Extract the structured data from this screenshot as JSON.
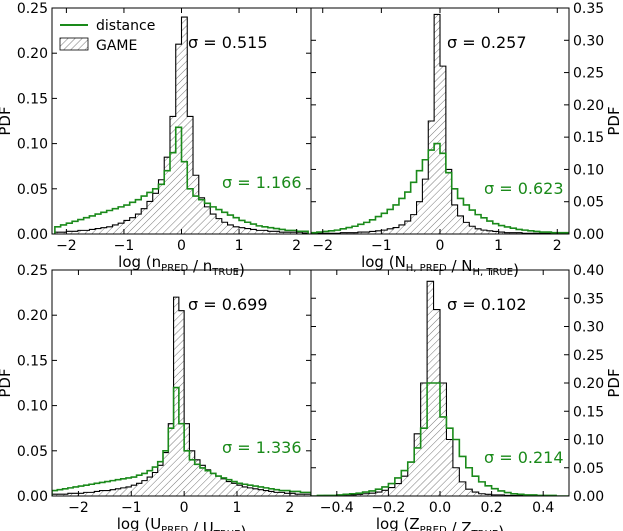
{
  "legend": {
    "items": [
      {
        "label": "distance",
        "color": "#1a8a1a"
      },
      {
        "label": "GAME",
        "color": "#000000"
      }
    ]
  },
  "chart_data": [
    {
      "type": "histogram",
      "panel": "top-left",
      "xlabel": "log (n_PRED / n_TRUE)",
      "ylabel": "PDF",
      "ylabel_side": "left",
      "xlim": [
        -2.25,
        2.25
      ],
      "ylim": [
        0,
        0.25
      ],
      "xticks": [
        -2,
        -1,
        0,
        1,
        2
      ],
      "yticks": [
        0.0,
        0.05,
        0.1,
        0.15,
        0.2,
        0.25
      ],
      "bin_width": 0.1,
      "sigma_game": "σ = 0.515",
      "sigma_distance": "σ = 1.166",
      "series": [
        {
          "name": "GAME",
          "centers": [
            -2.15,
            -2.05,
            -1.95,
            -1.85,
            -1.75,
            -1.65,
            -1.55,
            -1.45,
            -1.35,
            -1.25,
            -1.15,
            -1.05,
            -0.95,
            -0.85,
            -0.75,
            -0.65,
            -0.55,
            -0.45,
            -0.35,
            -0.25,
            -0.15,
            -0.05,
            0.05,
            0.15,
            0.25,
            0.35,
            0.45,
            0.55,
            0.65,
            0.75,
            0.85,
            0.95,
            1.05,
            1.15,
            1.25,
            1.35,
            1.45,
            1.55,
            1.65,
            1.75,
            1.85,
            1.95,
            2.05,
            2.15
          ],
          "values": [
            0.002,
            0.002,
            0.003,
            0.003,
            0.004,
            0.004,
            0.005,
            0.006,
            0.007,
            0.008,
            0.01,
            0.012,
            0.015,
            0.018,
            0.022,
            0.028,
            0.036,
            0.045,
            0.06,
            0.085,
            0.13,
            0.21,
            0.24,
            0.13,
            0.065,
            0.04,
            0.03,
            0.022,
            0.017,
            0.013,
            0.01,
            0.008,
            0.007,
            0.006,
            0.005,
            0.004,
            0.004,
            0.003,
            0.003,
            0.002,
            0.002,
            0.002,
            0.002,
            0.001
          ]
        },
        {
          "name": "distance",
          "centers": [
            -2.15,
            -2.05,
            -1.95,
            -1.85,
            -1.75,
            -1.65,
            -1.55,
            -1.45,
            -1.35,
            -1.25,
            -1.15,
            -1.05,
            -0.95,
            -0.85,
            -0.75,
            -0.65,
            -0.55,
            -0.45,
            -0.35,
            -0.25,
            -0.15,
            -0.05,
            0.05,
            0.15,
            0.25,
            0.35,
            0.45,
            0.55,
            0.65,
            0.75,
            0.85,
            0.95,
            1.05,
            1.15,
            1.25,
            1.35,
            1.45,
            1.55,
            1.65,
            1.75,
            1.85,
            1.95,
            2.05,
            2.15
          ],
          "values": [
            0.008,
            0.01,
            0.012,
            0.014,
            0.016,
            0.018,
            0.02,
            0.022,
            0.024,
            0.026,
            0.028,
            0.03,
            0.032,
            0.035,
            0.038,
            0.042,
            0.046,
            0.05,
            0.055,
            0.07,
            0.09,
            0.118,
            0.08,
            0.05,
            0.042,
            0.038,
            0.034,
            0.03,
            0.027,
            0.024,
            0.021,
            0.018,
            0.015,
            0.013,
            0.011,
            0.009,
            0.008,
            0.007,
            0.006,
            0.005,
            0.004,
            0.004,
            0.003,
            0.003
          ]
        }
      ]
    },
    {
      "type": "histogram",
      "panel": "top-right",
      "xlabel": "log (N_H,PRED / N_H,TRUE)",
      "ylabel": "PDF",
      "ylabel_side": "right",
      "xlim": [
        -2.2,
        2.2
      ],
      "ylim": [
        0,
        0.35
      ],
      "xticks": [
        -2,
        -1,
        0,
        1,
        2
      ],
      "yticks": [
        0.0,
        0.05,
        0.1,
        0.15,
        0.2,
        0.25,
        0.3,
        0.35
      ],
      "bin_width": 0.1,
      "sigma_game": "σ = 0.257",
      "sigma_distance": "σ = 0.623",
      "series": [
        {
          "name": "GAME",
          "centers": [
            -2.15,
            -2.05,
            -1.95,
            -1.85,
            -1.75,
            -1.65,
            -1.55,
            -1.45,
            -1.35,
            -1.25,
            -1.15,
            -1.05,
            -0.95,
            -0.85,
            -0.75,
            -0.65,
            -0.55,
            -0.45,
            -0.35,
            -0.25,
            -0.15,
            -0.05,
            0.05,
            0.15,
            0.25,
            0.35,
            0.45,
            0.55,
            0.65,
            0.75,
            0.85,
            0.95,
            1.05,
            1.15,
            1.25,
            1.35,
            1.45,
            1.55,
            1.65,
            1.75,
            1.85,
            1.95,
            2.05,
            2.15
          ],
          "values": [
            0.001,
            0.001,
            0.001,
            0.001,
            0.001,
            0.002,
            0.002,
            0.002,
            0.003,
            0.003,
            0.004,
            0.005,
            0.006,
            0.008,
            0.01,
            0.014,
            0.02,
            0.03,
            0.05,
            0.085,
            0.175,
            0.34,
            0.26,
            0.1,
            0.045,
            0.028,
            0.018,
            0.012,
            0.008,
            0.006,
            0.005,
            0.004,
            0.003,
            0.002,
            0.002,
            0.002,
            0.001,
            0.001,
            0.001,
            0.001,
            0.001,
            0.001,
            0.001,
            0.001
          ]
        },
        {
          "name": "distance",
          "centers": [
            -2.15,
            -2.05,
            -1.95,
            -1.85,
            -1.75,
            -1.65,
            -1.55,
            -1.45,
            -1.35,
            -1.25,
            -1.15,
            -1.05,
            -0.95,
            -0.85,
            -0.75,
            -0.65,
            -0.55,
            -0.45,
            -0.35,
            -0.25,
            -0.15,
            -0.05,
            0.05,
            0.15,
            0.25,
            0.35,
            0.45,
            0.55,
            0.65,
            0.75,
            0.85,
            0.95,
            1.05,
            1.15,
            1.25,
            1.35,
            1.45,
            1.55,
            1.65,
            1.75,
            1.85,
            1.95,
            2.05,
            2.15
          ],
          "values": [
            0.002,
            0.003,
            0.004,
            0.005,
            0.006,
            0.008,
            0.01,
            0.012,
            0.015,
            0.018,
            0.022,
            0.027,
            0.032,
            0.038,
            0.045,
            0.055,
            0.065,
            0.08,
            0.098,
            0.115,
            0.13,
            0.14,
            0.125,
            0.095,
            0.07,
            0.055,
            0.045,
            0.037,
            0.03,
            0.025,
            0.02,
            0.016,
            0.013,
            0.011,
            0.009,
            0.007,
            0.006,
            0.005,
            0.004,
            0.003,
            0.003,
            0.002,
            0.002,
            0.002
          ]
        }
      ]
    },
    {
      "type": "histogram",
      "panel": "bottom-left",
      "xlabel": "log (U_PRED / U_TRUE)",
      "ylabel": "PDF",
      "ylabel_side": "left",
      "xlim": [
        -2.5,
        2.4
      ],
      "ylim": [
        0,
        0.25
      ],
      "xticks": [
        -2,
        -1,
        0,
        1,
        2
      ],
      "yticks": [
        0.0,
        0.05,
        0.1,
        0.15,
        0.2,
        0.25
      ],
      "bin_width": 0.1,
      "sigma_game": "σ = 0.699",
      "sigma_distance": "σ = 1.336",
      "series": [
        {
          "name": "GAME",
          "centers": [
            -2.45,
            -2.35,
            -2.25,
            -2.15,
            -2.05,
            -1.95,
            -1.85,
            -1.75,
            -1.65,
            -1.55,
            -1.45,
            -1.35,
            -1.25,
            -1.15,
            -1.05,
            -0.95,
            -0.85,
            -0.75,
            -0.65,
            -0.55,
            -0.45,
            -0.35,
            -0.25,
            -0.15,
            -0.05,
            0.05,
            0.15,
            0.25,
            0.35,
            0.45,
            0.55,
            0.65,
            0.75,
            0.85,
            0.95,
            1.05,
            1.15,
            1.25,
            1.35,
            1.45,
            1.55,
            1.65,
            1.75,
            1.85,
            1.95,
            2.05,
            2.15,
            2.25,
            2.35
          ],
          "values": [
            0.002,
            0.002,
            0.002,
            0.003,
            0.003,
            0.003,
            0.004,
            0.004,
            0.005,
            0.006,
            0.006,
            0.007,
            0.008,
            0.009,
            0.01,
            0.012,
            0.014,
            0.017,
            0.021,
            0.026,
            0.034,
            0.048,
            0.08,
            0.22,
            0.205,
            0.08,
            0.05,
            0.04,
            0.034,
            0.029,
            0.025,
            0.022,
            0.019,
            0.016,
            0.014,
            0.012,
            0.01,
            0.009,
            0.008,
            0.007,
            0.006,
            0.005,
            0.004,
            0.004,
            0.003,
            0.003,
            0.002,
            0.002,
            0.002
          ]
        },
        {
          "name": "distance",
          "centers": [
            -2.45,
            -2.35,
            -2.25,
            -2.15,
            -2.05,
            -1.95,
            -1.85,
            -1.75,
            -1.65,
            -1.55,
            -1.45,
            -1.35,
            -1.25,
            -1.15,
            -1.05,
            -0.95,
            -0.85,
            -0.75,
            -0.65,
            -0.55,
            -0.45,
            -0.35,
            -0.25,
            -0.15,
            -0.05,
            0.05,
            0.15,
            0.25,
            0.35,
            0.45,
            0.55,
            0.65,
            0.75,
            0.85,
            0.95,
            1.05,
            1.15,
            1.25,
            1.35,
            1.45,
            1.55,
            1.65,
            1.75,
            1.85,
            1.95,
            2.05,
            2.15,
            2.25,
            2.35
          ],
          "values": [
            0.006,
            0.007,
            0.008,
            0.009,
            0.01,
            0.011,
            0.012,
            0.013,
            0.014,
            0.015,
            0.016,
            0.017,
            0.018,
            0.019,
            0.02,
            0.021,
            0.023,
            0.025,
            0.028,
            0.032,
            0.038,
            0.05,
            0.075,
            0.12,
            0.08,
            0.05,
            0.04,
            0.035,
            0.031,
            0.028,
            0.025,
            0.022,
            0.02,
            0.018,
            0.016,
            0.014,
            0.013,
            0.012,
            0.011,
            0.01,
            0.009,
            0.008,
            0.007,
            0.006,
            0.006,
            0.005,
            0.005,
            0.004,
            0.004
          ]
        }
      ]
    },
    {
      "type": "histogram",
      "panel": "bottom-right",
      "xlabel": "log (Z_PRED / Z_TRUE)",
      "ylabel": "PDF",
      "ylabel_side": "right",
      "xlim": [
        -0.5,
        0.5
      ],
      "ylim": [
        0,
        0.4
      ],
      "xticks": [
        -0.4,
        -0.2,
        0.0,
        0.2,
        0.4
      ],
      "yticks": [
        0.0,
        0.05,
        0.1,
        0.15,
        0.2,
        0.25,
        0.3,
        0.35,
        0.4
      ],
      "bin_width": 0.025,
      "sigma_game": "σ = 0.102",
      "sigma_distance": "σ = 0.214",
      "series": [
        {
          "name": "GAME",
          "centers": [
            -0.4875,
            -0.4625,
            -0.4375,
            -0.4125,
            -0.3875,
            -0.3625,
            -0.3375,
            -0.3125,
            -0.2875,
            -0.2625,
            -0.2375,
            -0.2125,
            -0.1875,
            -0.1625,
            -0.1375,
            -0.1125,
            -0.0875,
            -0.0625,
            -0.0375,
            -0.0125,
            0.0125,
            0.0375,
            0.0625,
            0.0875,
            0.1125,
            0.1375,
            0.1625,
            0.1875,
            0.2125,
            0.2375,
            0.2625,
            0.2875,
            0.3125,
            0.3375,
            0.3625,
            0.3875,
            0.4125,
            0.4375,
            0.4625,
            0.4875
          ],
          "values": [
            0.0,
            0.0,
            0.001,
            0.001,
            0.001,
            0.002,
            0.002,
            0.003,
            0.004,
            0.005,
            0.007,
            0.01,
            0.015,
            0.022,
            0.035,
            0.06,
            0.11,
            0.2,
            0.38,
            0.33,
            0.2,
            0.1,
            0.05,
            0.025,
            0.012,
            0.007,
            0.004,
            0.003,
            0.002,
            0.002,
            0.001,
            0.001,
            0.001,
            0.001,
            0.0,
            0.0,
            0.0,
            0.0,
            0.0,
            0.0
          ]
        },
        {
          "name": "distance",
          "centers": [
            -0.4875,
            -0.4625,
            -0.4375,
            -0.4125,
            -0.3875,
            -0.3625,
            -0.3375,
            -0.3125,
            -0.2875,
            -0.2625,
            -0.2375,
            -0.2125,
            -0.1875,
            -0.1625,
            -0.1375,
            -0.1125,
            -0.0875,
            -0.0625,
            -0.0375,
            -0.0125,
            0.0125,
            0.0375,
            0.0625,
            0.0875,
            0.1125,
            0.1375,
            0.1625,
            0.1875,
            0.2125,
            0.2375,
            0.2625,
            0.2875,
            0.3125,
            0.3375,
            0.3625,
            0.3875,
            0.4125,
            0.4375,
            0.4625,
            0.4875
          ],
          "values": [
            0.0,
            0.001,
            0.001,
            0.001,
            0.002,
            0.003,
            0.004,
            0.005,
            0.007,
            0.009,
            0.012,
            0.016,
            0.022,
            0.032,
            0.045,
            0.06,
            0.085,
            0.12,
            0.2,
            0.2,
            0.14,
            0.12,
            0.1,
            0.07,
            0.05,
            0.035,
            0.025,
            0.018,
            0.013,
            0.009,
            0.006,
            0.004,
            0.003,
            0.002,
            0.002,
            0.001,
            0.001,
            0.001,
            0.0,
            0.0
          ]
        }
      ]
    }
  ]
}
